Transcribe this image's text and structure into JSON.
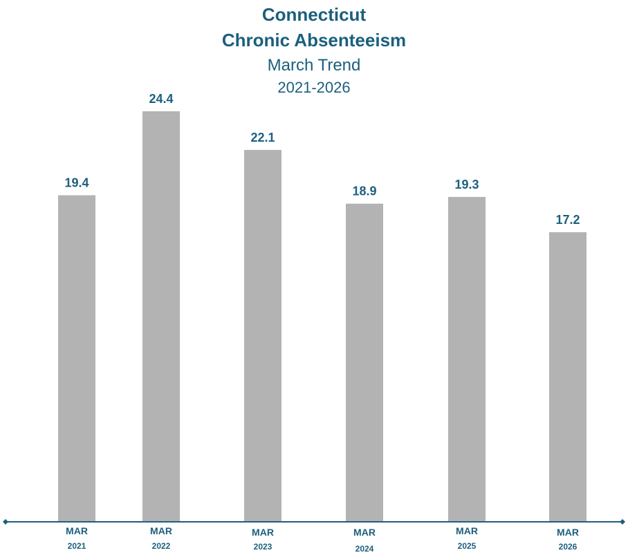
{
  "chart_data": {
    "type": "bar",
    "title": [
      "Connecticut",
      "Chronic Absenteeism"
    ],
    "subtitle": [
      "March Trend",
      "2021-2026"
    ],
    "categories": [
      {
        "month": "MAR",
        "year": "2021"
      },
      {
        "month": "MAR",
        "year": "2022"
      },
      {
        "month": "MAR",
        "year": "2023"
      },
      {
        "month": "MAR",
        "year": "2024"
      },
      {
        "month": "MAR",
        "year": "2025"
      },
      {
        "month": "MAR",
        "year": "2026"
      }
    ],
    "values": [
      19.4,
      24.4,
      22.1,
      18.9,
      19.3,
      17.2
    ],
    "data_labels": [
      "19.4",
      "24.4",
      "22.1",
      "18.9",
      "19.3",
      "17.2"
    ],
    "xlabel": "",
    "ylabel": "",
    "ylim": [
      0,
      30
    ],
    "grid": false,
    "legend": "none",
    "colors": {
      "bar": "#b3b3b3",
      "text": "#1b5f7d",
      "axis": "#1b5f7d"
    }
  }
}
